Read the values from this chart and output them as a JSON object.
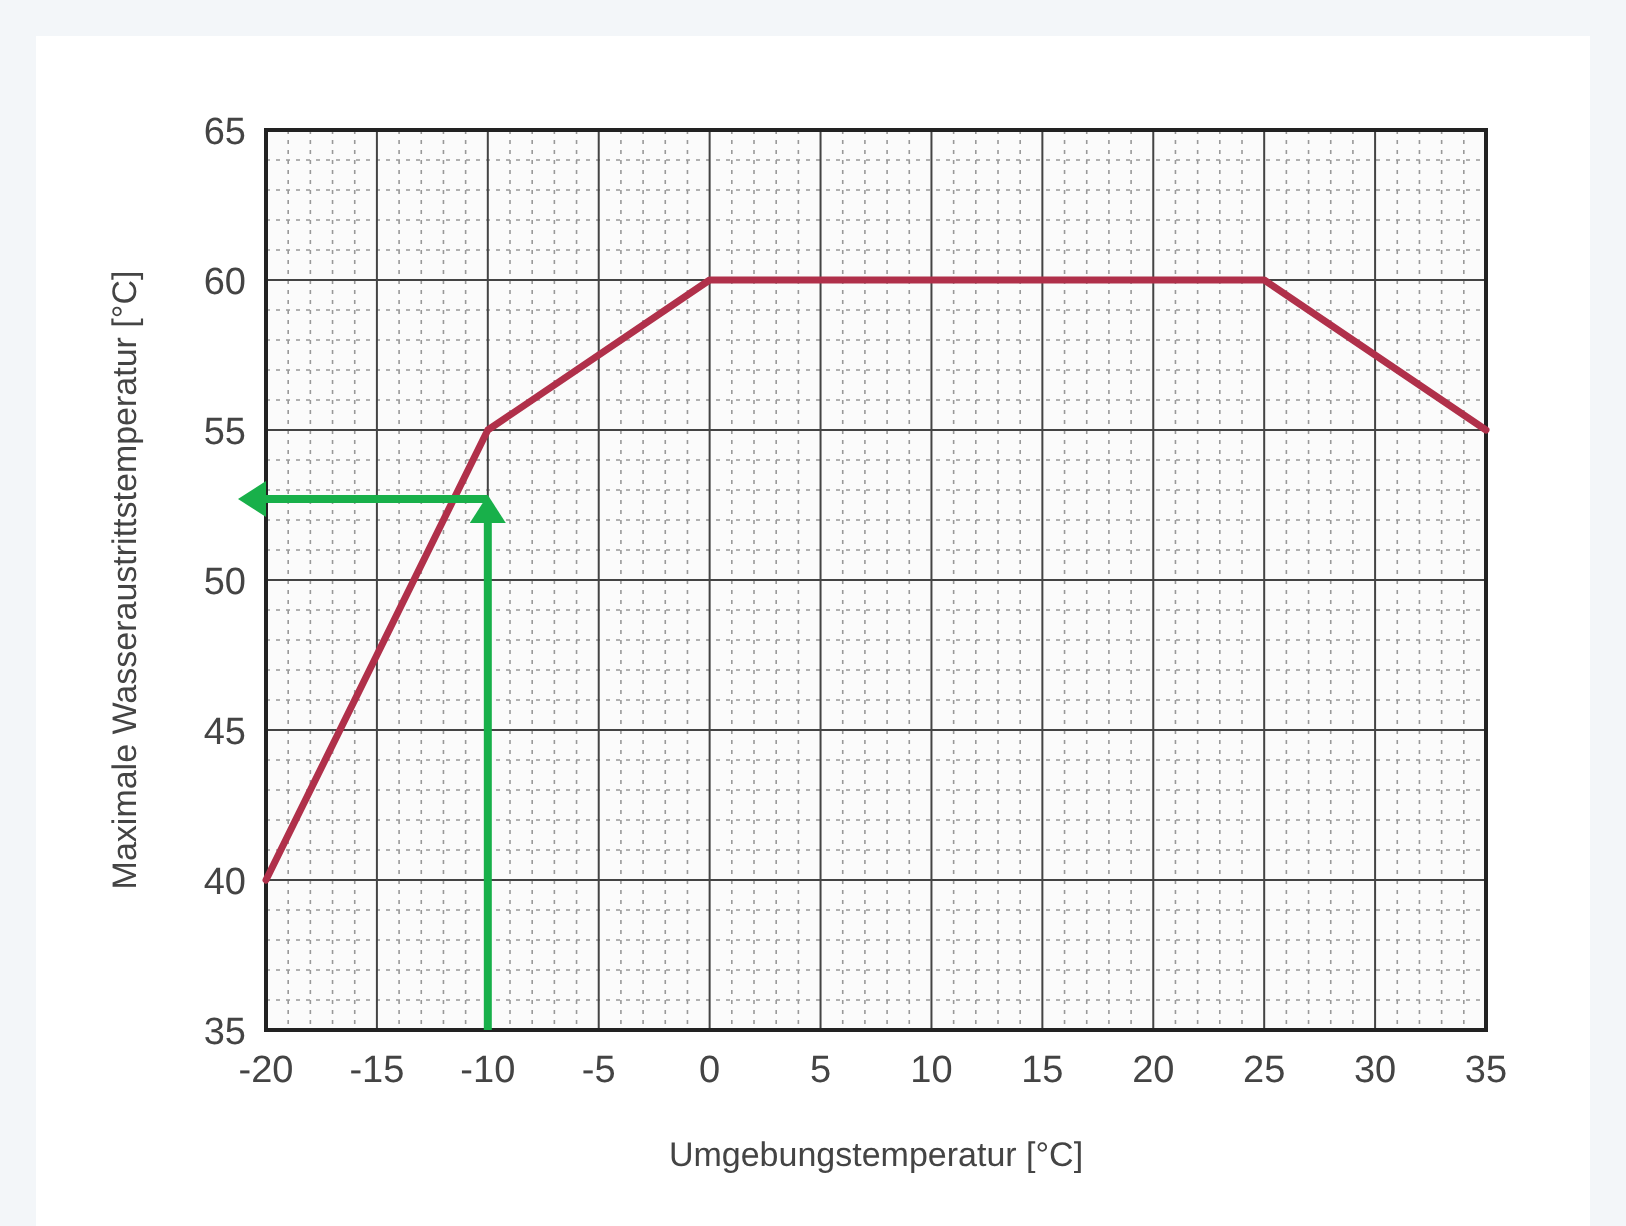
{
  "chart_data": {
    "type": "line",
    "xlabel": "Umgebungstemperatur [°C]",
    "ylabel": "Maximale Wasseraustrittstemperatur [°C]",
    "x": [
      -20,
      -10,
      0,
      25,
      35
    ],
    "series": [
      {
        "color": "#b0304a",
        "values": [
          40,
          55,
          60,
          60,
          55
        ]
      }
    ],
    "xlim": [
      -20,
      35
    ],
    "ylim": [
      35,
      65
    ],
    "xticks": [
      -20,
      -15,
      -10,
      -5,
      0,
      5,
      10,
      15,
      20,
      25,
      30,
      35
    ],
    "yticks": [
      35,
      40,
      45,
      50,
      55,
      60,
      65
    ],
    "grid": true,
    "marker": "none",
    "line_style": "solid"
  }
}
